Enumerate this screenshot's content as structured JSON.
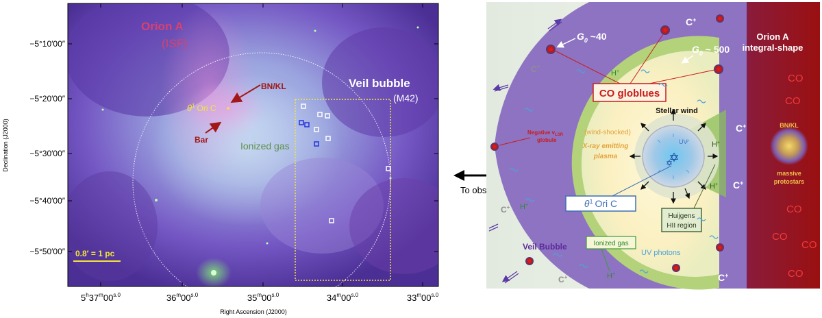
{
  "left_panel": {
    "labels": {
      "orion_a": "Orion A",
      "isf": "(ISF)",
      "veil_bubble": "Veil bubble",
      "m42": "(M42)",
      "bnkl": "BN/KL",
      "theta_sym": "θ",
      "theta_sup": "1",
      "ori_c": "Ori C",
      "bar": "Bar",
      "ionized_gas": "Ionized gas",
      "scale_bar": "0.8′ = 1 pc"
    },
    "y_axis": {
      "title": "Declination (J2000)",
      "ticks": [
        "−5°10′00″",
        "−5°20′00″",
        "−5°30′00″",
        "−5°40′00″",
        "−5°50′00″"
      ]
    },
    "x_axis": {
      "title": "Right Ascension (J2000)",
      "ticks": [
        {
          "prefix": "5",
          "h": "h",
          "main": "37",
          "m": "m",
          "sec": "00",
          "sfrac": "s.0"
        },
        {
          "prefix": "",
          "h": "",
          "main": "36",
          "m": "m",
          "sec": "00",
          "sfrac": "s.0"
        },
        {
          "prefix": "",
          "h": "",
          "main": "35",
          "m": "m",
          "sec": "00",
          "sfrac": "s.0"
        },
        {
          "prefix": "",
          "h": "",
          "main": "34",
          "m": "m",
          "sec": "00",
          "sfrac": "s.0"
        },
        {
          "prefix": "",
          "h": "",
          "main": "33",
          "m": "m",
          "sec": "00",
          "sfrac": "s.0"
        }
      ]
    },
    "colors": {
      "orion_a": "#d8416e",
      "bnkl": "#a01818",
      "theta": "#f4e63a",
      "ionized_gas": "#5f8f4a",
      "scale_bar": "#f4e63a",
      "box_yellow": "#f1e44a"
    }
  },
  "arrow": {
    "label": "To observer"
  },
  "right_panel": {
    "labels": {
      "c_plus": "C",
      "plus": "+",
      "h_plus": "H",
      "g0": "G",
      "g0_sub": "0",
      "g0_40": " ~40",
      "g0_500": " ~ 500",
      "orion_a_line1": "Orion A",
      "orion_a_line2": "integral-shape",
      "co_globlues": "CO globlues",
      "neg_line1": "Negative v",
      "neg_sub": "LSR",
      "neg_line2": "globule",
      "wind_shocked": "(wind-shocked)",
      "xray_line1": "X-ray emitting",
      "xray_line2": "plasma",
      "stellar_wind": "Stellar wind",
      "uv": "UV",
      "theta_box": "Ori C",
      "theta_sym": "θ",
      "theta_sup": "1",
      "huijgens_line1": "Huijgens",
      "huijgens_line2": "HII region",
      "ionized_gas": "Ionized gas",
      "uv_photons": "UV photons",
      "veil_bubble": "Veil Bubble",
      "bnkl": "BN/KL",
      "massive_line1": "massive",
      "massive_line2": "protostars",
      "co": "CO"
    },
    "colors": {
      "purple_shell": "#8e73c2",
      "green_shell": "#b3d27a",
      "red_region": "#a6161b",
      "co_text": "#f13a3a",
      "co_box": "#c81d1d",
      "theta_box": "#3f6fb5"
    }
  }
}
